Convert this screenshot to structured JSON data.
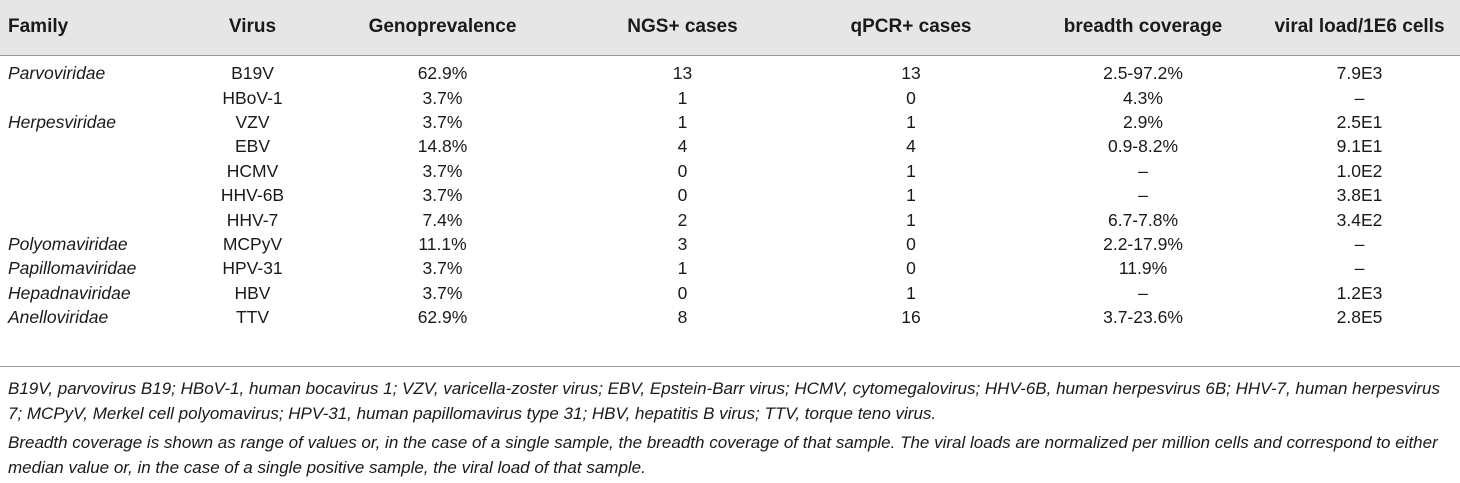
{
  "table": {
    "headers": [
      "Family",
      "Virus",
      "Genoprevalence",
      "NGS+ cases",
      "qPCR+ cases",
      "breadth coverage",
      "viral load/1E6 cells"
    ],
    "rows": [
      {
        "family": "Parvoviridae",
        "virus": "B19V",
        "geno": "62.9%",
        "ngs": "13",
        "qpcr": "13",
        "breadth": "2.5-97.2%",
        "load": "7.9E3"
      },
      {
        "family": "",
        "virus": "HBoV-1",
        "geno": "3.7%",
        "ngs": "1",
        "qpcr": "0",
        "breadth": "4.3%",
        "load": "–"
      },
      {
        "family": "Herpesviridae",
        "virus": "VZV",
        "geno": "3.7%",
        "ngs": "1",
        "qpcr": "1",
        "breadth": "2.9%",
        "load": "2.5E1"
      },
      {
        "family": "",
        "virus": "EBV",
        "geno": "14.8%",
        "ngs": "4",
        "qpcr": "4",
        "breadth": "0.9-8.2%",
        "load": "9.1E1"
      },
      {
        "family": "",
        "virus": "HCMV",
        "geno": "3.7%",
        "ngs": "0",
        "qpcr": "1",
        "breadth": "–",
        "load": "1.0E2"
      },
      {
        "family": "",
        "virus": "HHV-6B",
        "geno": "3.7%",
        "ngs": "0",
        "qpcr": "1",
        "breadth": "–",
        "load": "3.8E1"
      },
      {
        "family": "",
        "virus": "HHV-7",
        "geno": "7.4%",
        "ngs": "2",
        "qpcr": "1",
        "breadth": "6.7-7.8%",
        "load": "3.4E2"
      },
      {
        "family": "Polyomaviridae",
        "virus": "MCPyV",
        "geno": "11.1%",
        "ngs": "3",
        "qpcr": "0",
        "breadth": "2.2-17.9%",
        "load": "–"
      },
      {
        "family": "Papillomaviridae",
        "virus": "HPV-31",
        "geno": "3.7%",
        "ngs": "1",
        "qpcr": "0",
        "breadth": "11.9%",
        "load": "–"
      },
      {
        "family": "Hepadnaviridae",
        "virus": "HBV",
        "geno": "3.7%",
        "ngs": "0",
        "qpcr": "1",
        "breadth": "–",
        "load": "1.2E3"
      },
      {
        "family": "Anelloviridae",
        "virus": "TTV",
        "geno": "62.9%",
        "ngs": "8",
        "qpcr": "16",
        "breadth": "3.7-23.6%",
        "load": "2.8E5"
      }
    ]
  },
  "footnotes": {
    "abbreviations": "B19V, parvovirus B19; HBoV-1, human bocavirus 1; VZV, varicella-zoster virus; EBV, Epstein-Barr virus; HCMV, cytomegalovirus; HHV-6B, human herpesvirus 6B; HHV-7, human herpesvirus 7; MCPyV, Merkel cell polyomavirus; HPV-31, human papillomavirus type 31; HBV, hepatitis B virus; TTV, torque teno virus.",
    "explanation": "Breadth coverage is shown as range of values or, in the case of a single sample, the breadth coverage of that sample. The viral loads are normalized per million cells and correspond to either median value or, in the case of a single positive sample, the viral load of that sample."
  }
}
